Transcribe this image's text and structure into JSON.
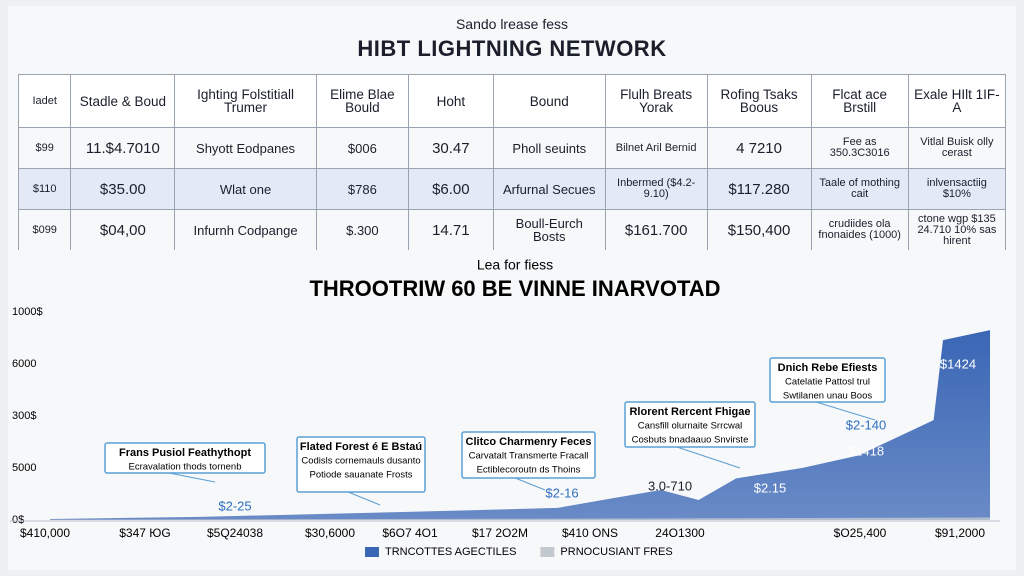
{
  "header": {
    "subtitle": "Sando lrease fess",
    "title": "HIBT LIGHTNING NETWORK"
  },
  "table": {
    "columns": [
      "Iadet",
      "Stadle & Boud",
      "Ighting Folstitiall Trumer",
      "Elime Blae Bould",
      "Hoht",
      "Bound",
      "Flulh Breats Yorak",
      "Rofing Tsaks Boous",
      "Flcat ace Brstill",
      "Exale HIlt 1IF-A"
    ],
    "rows": [
      [
        "$99",
        "11.$4.7010",
        "Shyott Eodpanes",
        "$006",
        "30.47",
        "Pholl seuints",
        "Bilnet Aril Bernid",
        "4 7210",
        "Fee as 350.3C3016",
        "Vitlal Buisk olly cerast"
      ],
      [
        "$110",
        "$35.00",
        "Wlat one",
        "$786",
        "$6.00",
        "Arfurnal Secues",
        "Inbermed ($4.2-9.10)",
        "$117.280",
        "Taale of mothing cait",
        "inlvensactiig $10%"
      ],
      [
        "$099",
        "$04,00",
        "Infurnh Codpange",
        "$.300",
        "14.71",
        "Boull-Eurch Bosts",
        "$161.700",
        "$150,400",
        "crudiides ola fnonaides (1000)",
        "ctone wgp $135 24.710 10% sas hirent"
      ]
    ]
  },
  "chart_data": {
    "type": "area",
    "subtitle": "Lea for fiess",
    "title": "THROOTRIW 60 BE VINNE INARVOTAD",
    "categories": [
      "$410,000",
      "$347 ЮG",
      "$5Q24038",
      "$30,6000",
      "$6O7 4O1",
      "$17 2O2M",
      "$410 ONS",
      "24O1300",
      "$O25,400",
      "$91,2000"
    ],
    "y_axis_labels": [
      "0$",
      "5000",
      "300$",
      "6000",
      "1000$"
    ],
    "xlim": [
      0,
      100
    ],
    "ylim": [
      0,
      10000
    ],
    "series": [
      {
        "name": "TRNCOTTES AGECTILES",
        "color": "#3a66b5",
        "x": [
          0,
          16,
          37,
          54,
          60,
          65,
          69,
          73,
          80,
          86,
          94,
          95,
          100
        ],
        "values": [
          50,
          150,
          380,
          580,
          1060,
          1440,
          960,
          2000,
          2500,
          3100,
          4800,
          8650,
          9130
        ]
      },
      {
        "name": "PRNOCUSIANT FRES",
        "color": "#c3c8d0",
        "x": [
          0,
          50,
          100
        ],
        "values": [
          20,
          60,
          120
        ]
      }
    ],
    "annotations": [
      {
        "lines": [
          "Frans Pusiol Feathythopt",
          "Ecravalation thods tornenb"
        ],
        "value_text": "$2-25"
      },
      {
        "lines": [
          "Flated Forest é E Bstaú",
          "Codisls cornemauls dusanto",
          "Potiode sauanate Frosts"
        ],
        "value_text": ""
      },
      {
        "lines": [
          "Clitco Charmenry Feces",
          "Carvatalt Transmerte Fracall",
          "Ectiblecoroutn ds Thoins"
        ],
        "value_text": "$2-16"
      },
      {
        "lines": [
          "Rlorent Rercent Fhigae",
          "Cansfill olurnaite Srrcwal",
          "Cosbuts bnadaauo Snvirste"
        ],
        "value_text": "$2.15"
      },
      {
        "lines": [
          "Dnich Rebe Efiests",
          "Catelatie Pattosl trul",
          "Swtilanen unau Boos"
        ],
        "value_text": "$2-140"
      }
    ],
    "point_labels": [
      "3.0-710",
      "$1418",
      "$1424"
    ]
  }
}
